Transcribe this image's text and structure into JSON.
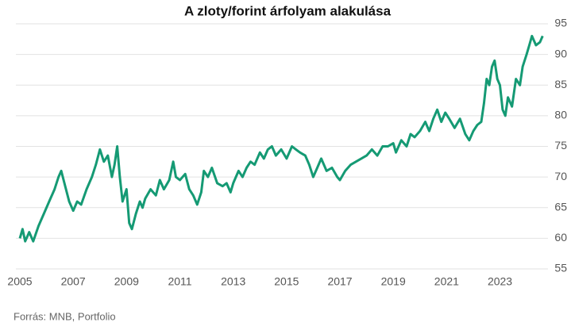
{
  "chart_data": {
    "type": "line",
    "title": "A zloty/forint árfolyam alakulása",
    "source": "Forrás: MNB, Portfolio",
    "xlim": [
      2005,
      2024.8
    ],
    "xticks": [
      2005,
      2007,
      2009,
      2011,
      2013,
      2015,
      2017,
      2019,
      2021,
      2023
    ],
    "ylim": [
      55,
      95
    ],
    "yticks": [
      55,
      60,
      65,
      70,
      75,
      80,
      85,
      90,
      95
    ],
    "grid": true,
    "x": [
      2005.0,
      2005.1,
      2005.2,
      2005.35,
      2005.5,
      2005.7,
      2005.9,
      2006.1,
      2006.3,
      2006.45,
      2006.55,
      2006.7,
      2006.85,
      2007.0,
      2007.15,
      2007.3,
      2007.5,
      2007.7,
      2007.85,
      2008.0,
      2008.15,
      2008.3,
      2008.45,
      2008.55,
      2008.65,
      2008.75,
      2008.85,
      2009.0,
      2009.1,
      2009.2,
      2009.35,
      2009.5,
      2009.6,
      2009.7,
      2009.9,
      2010.1,
      2010.25,
      2010.4,
      2010.6,
      2010.75,
      2010.85,
      2011.0,
      2011.2,
      2011.35,
      2011.5,
      2011.65,
      2011.8,
      2011.9,
      2012.05,
      2012.2,
      2012.4,
      2012.6,
      2012.75,
      2012.9,
      2013.0,
      2013.2,
      2013.35,
      2013.5,
      2013.65,
      2013.8,
      2014.0,
      2014.15,
      2014.3,
      2014.45,
      2014.6,
      2014.8,
      2015.0,
      2015.2,
      2015.35,
      2015.5,
      2015.7,
      2015.85,
      2016.0,
      2016.15,
      2016.3,
      2016.5,
      2016.7,
      2016.9,
      2017.0,
      2017.2,
      2017.4,
      2017.6,
      2017.8,
      2018.0,
      2018.2,
      2018.4,
      2018.6,
      2018.8,
      2019.0,
      2019.1,
      2019.3,
      2019.5,
      2019.65,
      2019.8,
      2020.0,
      2020.2,
      2020.35,
      2020.5,
      2020.65,
      2020.8,
      2020.95,
      2021.1,
      2021.3,
      2021.5,
      2021.7,
      2021.85,
      2022.0,
      2022.15,
      2022.3,
      2022.4,
      2022.5,
      2022.6,
      2022.7,
      2022.8,
      2022.9,
      2023.0,
      2023.1,
      2023.2,
      2023.3,
      2023.45,
      2023.6,
      2023.75,
      2023.85,
      2024.0,
      2024.1,
      2024.2,
      2024.35,
      2024.5,
      2024.6
    ],
    "series": [
      {
        "color": "#159a74",
        "values": [
          60,
          61.5,
          59.5,
          61,
          59.5,
          62,
          64,
          66,
          68,
          70,
          71,
          68.5,
          66,
          64.5,
          66,
          65.5,
          68,
          70,
          72,
          74.5,
          72.5,
          73.5,
          70,
          72,
          75,
          70,
          66,
          68,
          62.5,
          61.5,
          64,
          66,
          65,
          66.5,
          68,
          67,
          69.5,
          68,
          69.5,
          72.5,
          70,
          69.5,
          70.5,
          68,
          67,
          65.5,
          67.5,
          71,
          70,
          71.5,
          69,
          68.5,
          69,
          67.5,
          69,
          71,
          70,
          71.5,
          72.5,
          72,
          74,
          73,
          74.5,
          75,
          73.5,
          74.5,
          73,
          75,
          74.5,
          74,
          73.5,
          72,
          70,
          71.5,
          73,
          71,
          71.5,
          70,
          69.5,
          71,
          72,
          72.5,
          73,
          73.5,
          74.5,
          73.5,
          75,
          75,
          75.5,
          74,
          76,
          75,
          77,
          76.5,
          77.5,
          79,
          77.5,
          79.5,
          81,
          79,
          80.5,
          79.5,
          78,
          79.5,
          77,
          76,
          77.5,
          78.5,
          79,
          82,
          86,
          85,
          88,
          89,
          86,
          85,
          81,
          80,
          83,
          81.5,
          86,
          85,
          88,
          90,
          91.5,
          93,
          91.5,
          92,
          93
        ]
      }
    ]
  }
}
